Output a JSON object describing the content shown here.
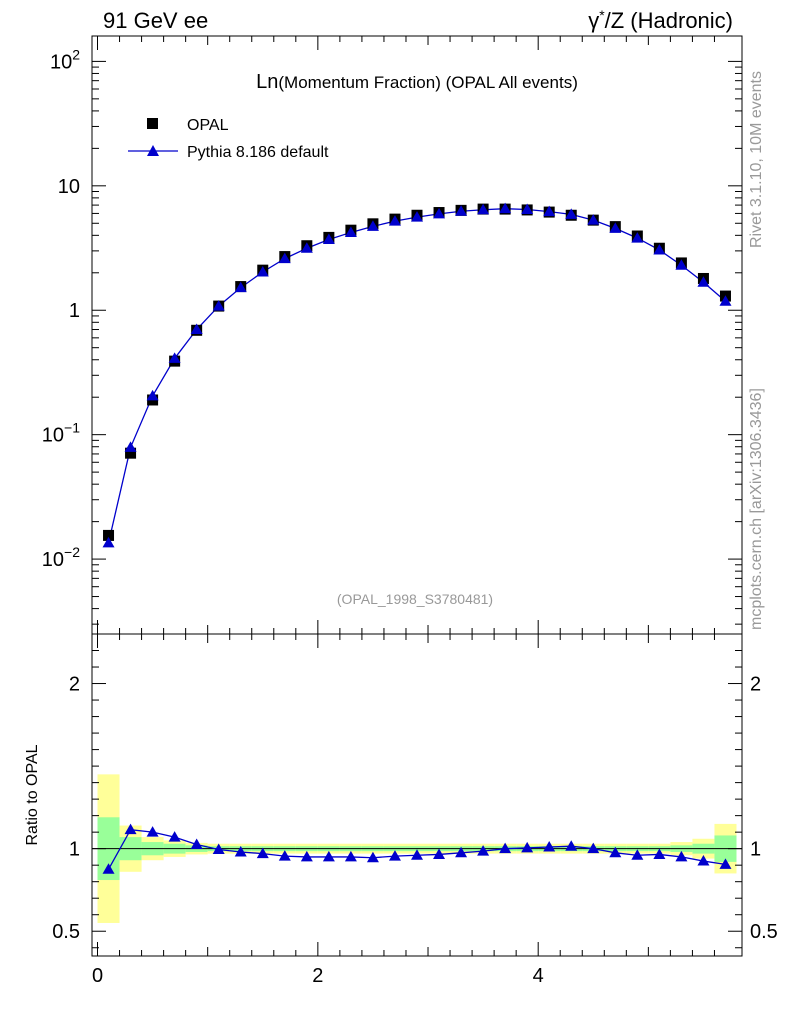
{
  "header": {
    "left_title": "91 GeV ee",
    "right_title_prefix": "γ",
    "right_title_sup": "*",
    "right_title_suffix": "/Z (Hadronic)",
    "side_label_top": "Rivet 3.1.10,  10M events",
    "side_label_bottom": "mcplots.cern.ch [arXiv:1306.3436]"
  },
  "chart_data": [
    {
      "type": "scatter",
      "title_main": "Ln",
      "title_rest": "(Momentum Fraction) (OPAL All events)",
      "analysis_tag": "(OPAL_1998_S3780481)",
      "yscale": "log",
      "ylim": [
        0.0025,
        160
      ],
      "xlim": [
        -0.05,
        5.85
      ],
      "grid": false,
      "legend_position": "top-left",
      "y_ticks": [
        {
          "value": 100,
          "base": "10",
          "exp": "2"
        },
        {
          "value": 10,
          "base": "10",
          "exp": ""
        },
        {
          "value": 1,
          "base": "1",
          "exp": ""
        },
        {
          "value": 0.1,
          "base": "10",
          "exp": "−1"
        },
        {
          "value": 0.01,
          "base": "10",
          "exp": "−2"
        }
      ],
      "series": [
        {
          "name": "OPAL",
          "marker": "square",
          "color": "#000000",
          "x": [
            0.1,
            0.3,
            0.5,
            0.7,
            0.9,
            1.1,
            1.3,
            1.5,
            1.7,
            1.9,
            2.1,
            2.3,
            2.5,
            2.7,
            2.9,
            3.1,
            3.3,
            3.5,
            3.7,
            3.9,
            4.1,
            4.3,
            4.5,
            4.7,
            4.9,
            5.1,
            5.3,
            5.5,
            5.7
          ],
          "y": [
            0.0155,
            0.071,
            0.19,
            0.39,
            0.69,
            1.08,
            1.55,
            2.1,
            2.7,
            3.3,
            3.85,
            4.4,
            4.95,
            5.4,
            5.8,
            6.1,
            6.35,
            6.5,
            6.5,
            6.4,
            6.15,
            5.8,
            5.3,
            4.7,
            3.95,
            3.15,
            2.4,
            1.8,
            1.3
          ]
        },
        {
          "name": "Pythia 8.186 default",
          "marker": "triangle",
          "color": "#0000cc",
          "x": [
            0.1,
            0.3,
            0.5,
            0.7,
            0.9,
            1.1,
            1.3,
            1.5,
            1.7,
            1.9,
            2.1,
            2.3,
            2.5,
            2.7,
            2.9,
            3.1,
            3.3,
            3.5,
            3.7,
            3.9,
            4.1,
            4.3,
            4.5,
            4.7,
            4.9,
            5.1,
            5.3,
            5.5,
            5.7
          ],
          "y": [
            0.0135,
            0.079,
            0.205,
            0.41,
            0.7,
            1.08,
            1.52,
            2.03,
            2.6,
            3.15,
            3.7,
            4.22,
            4.72,
            5.2,
            5.6,
            5.95,
            6.25,
            6.42,
            6.55,
            6.45,
            6.2,
            5.9,
            5.3,
            4.55,
            3.8,
            3.05,
            2.3,
            1.68,
            1.18
          ]
        }
      ]
    },
    {
      "type": "line",
      "ylabel": "Ratio to OPAL",
      "ylim": [
        0.35,
        2.3
      ],
      "xlim": [
        -0.05,
        5.85
      ],
      "grid": false,
      "y_ticks": [
        0.5,
        1,
        2
      ],
      "x_ticks": [
        0,
        2,
        4
      ],
      "band_edges": [
        0,
        0.2,
        0.4,
        0.6,
        0.8,
        1.0,
        1.2,
        1.4,
        1.6,
        1.8,
        2.0,
        2.2,
        2.4,
        2.6,
        2.8,
        3.0,
        3.2,
        3.4,
        3.6,
        3.8,
        4.0,
        4.2,
        4.4,
        4.6,
        4.8,
        5.0,
        5.2,
        5.4,
        5.6,
        5.8
      ],
      "band_inner": [
        0.19,
        0.07,
        0.04,
        0.03,
        0.02,
        0.015,
        0.015,
        0.015,
        0.015,
        0.015,
        0.015,
        0.015,
        0.015,
        0.015,
        0.015,
        0.015,
        0.015,
        0.015,
        0.015,
        0.015,
        0.015,
        0.015,
        0.015,
        0.015,
        0.015,
        0.015,
        0.02,
        0.03,
        0.08
      ],
      "band_outer": [
        0.45,
        0.14,
        0.07,
        0.05,
        0.035,
        0.03,
        0.03,
        0.03,
        0.03,
        0.03,
        0.03,
        0.03,
        0.03,
        0.03,
        0.03,
        0.03,
        0.03,
        0.03,
        0.03,
        0.03,
        0.03,
        0.03,
        0.03,
        0.03,
        0.03,
        0.03,
        0.04,
        0.06,
        0.15
      ],
      "band_inner_color": "#99ff99",
      "band_outer_color": "#ffff99",
      "series": [
        {
          "name": "Pythia 8.186 default",
          "color": "#0000cc",
          "x": [
            0.1,
            0.3,
            0.5,
            0.7,
            0.9,
            1.1,
            1.3,
            1.5,
            1.7,
            1.9,
            2.1,
            2.3,
            2.5,
            2.7,
            2.9,
            3.1,
            3.3,
            3.5,
            3.7,
            3.9,
            4.1,
            4.3,
            4.5,
            4.7,
            4.9,
            5.1,
            5.3,
            5.5,
            5.7
          ],
          "y": [
            0.875,
            1.115,
            1.1,
            1.07,
            1.025,
            0.995,
            0.98,
            0.97,
            0.955,
            0.95,
            0.95,
            0.95,
            0.945,
            0.955,
            0.96,
            0.965,
            0.975,
            0.985,
            1.0,
            1.005,
            1.01,
            1.015,
            1.0,
            0.975,
            0.96,
            0.965,
            0.95,
            0.925,
            0.905
          ]
        }
      ]
    }
  ]
}
